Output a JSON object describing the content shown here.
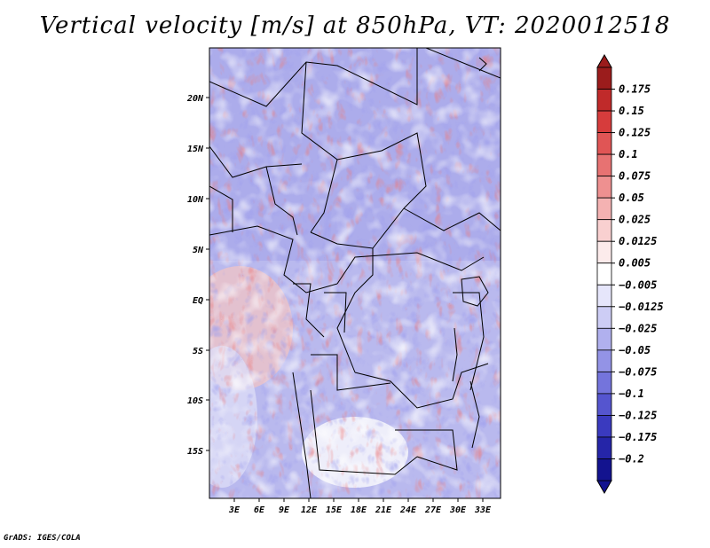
{
  "title": "Vertical velocity [m/s] at 850hPa, VT: 2020012518",
  "footer": "GrADS: IGES/COLA",
  "map": {
    "lat_labels": [
      "20N",
      "15N",
      "10N",
      "5N",
      "EQ",
      "5S",
      "10S",
      "15S"
    ],
    "lon_labels": [
      "3E",
      "6E",
      "9E",
      "12E",
      "15E",
      "18E",
      "21E",
      "24E",
      "27E",
      "30E",
      "33E"
    ]
  },
  "colorbar": {
    "labels": [
      "0.175",
      "0.15",
      "0.125",
      "0.1",
      "0.075",
      "0.05",
      "0.025",
      "0.0125",
      "0.005",
      "−0.005",
      "−0.0125",
      "−0.025",
      "−0.05",
      "−0.075",
      "−0.1",
      "−0.125",
      "−0.175",
      "−0.2"
    ],
    "colors": [
      "#9b1c1c",
      "#c02a2a",
      "#d63c3c",
      "#e05555",
      "#e77272",
      "#ee9090",
      "#f4b2b2",
      "#f9d0d0",
      "#fcebeb",
      "#ffffff",
      "#e6e6fb",
      "#cdcdf5",
      "#b0b0ee",
      "#9393e6",
      "#7474dc",
      "#5555cf",
      "#3a3abf",
      "#2525a8",
      "#13138f"
    ],
    "arrow_top": "#9b1c1c",
    "arrow_bottom": "#13138f"
  }
}
